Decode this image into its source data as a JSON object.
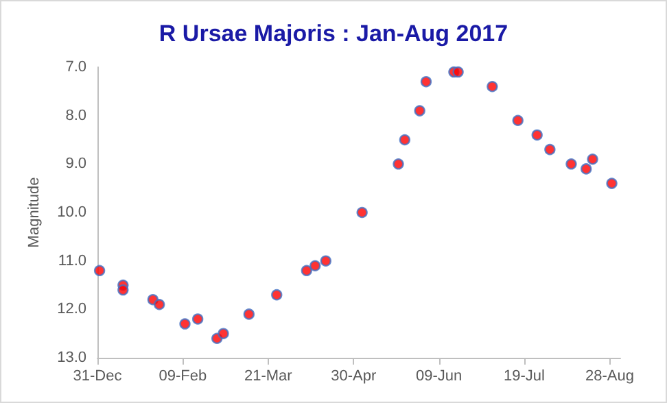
{
  "chart_data": {
    "type": "scatter",
    "title": "R Ursae Majoris : Jan-Aug 2017",
    "ylabel": "Magnitude",
    "x": [
      "2017-01-01",
      "2017-01-12",
      "2017-01-12",
      "2017-01-26",
      "2017-01-29",
      "2017-02-10",
      "2017-02-16",
      "2017-02-25",
      "2017-02-28",
      "2017-03-12",
      "2017-03-25",
      "2017-04-08",
      "2017-04-12",
      "2017-04-17",
      "2017-05-04",
      "2017-05-21",
      "2017-05-24",
      "2017-05-31",
      "2017-06-03",
      "2017-06-16",
      "2017-06-18",
      "2017-07-04",
      "2017-07-16",
      "2017-07-25",
      "2017-07-31",
      "2017-08-10",
      "2017-08-17",
      "2017-08-20",
      "2017-08-29"
    ],
    "series": [
      {
        "color": "#ff0000",
        "values": [
          11.2,
          11.5,
          11.6,
          11.8,
          11.9,
          12.3,
          12.2,
          12.6,
          12.5,
          12.1,
          11.7,
          11.2,
          11.1,
          11.0,
          10.0,
          9.0,
          8.5,
          7.9,
          7.3,
          7.1,
          7.1,
          7.4,
          8.1,
          8.4,
          8.7,
          9.0,
          9.1,
          8.9,
          9.4
        ]
      }
    ],
    "xlim": [
      "2016-12-31",
      "2017-09-02"
    ],
    "xticks": [
      {
        "value": "2016-12-31",
        "label": "31-Dec"
      },
      {
        "value": "2017-02-09",
        "label": "09-Feb"
      },
      {
        "value": "2017-03-21",
        "label": "21-Mar"
      },
      {
        "value": "2017-04-30",
        "label": "30-Apr"
      },
      {
        "value": "2017-06-09",
        "label": "09-Jun"
      },
      {
        "value": "2017-07-19",
        "label": "19-Jul"
      },
      {
        "value": "2017-08-28",
        "label": "28-Aug"
      }
    ],
    "ylim": [
      13.0,
      7.0
    ],
    "yticks": [
      {
        "value": 7,
        "label": "7.0"
      },
      {
        "value": 8,
        "label": "8.0"
      },
      {
        "value": 9,
        "label": "9.0"
      },
      {
        "value": 10,
        "label": "10.0"
      },
      {
        "value": 11,
        "label": "11.0"
      },
      {
        "value": 12,
        "label": "12.0"
      },
      {
        "value": 13,
        "label": "13.0"
      }
    ],
    "grid": false,
    "marker": "circle"
  }
}
